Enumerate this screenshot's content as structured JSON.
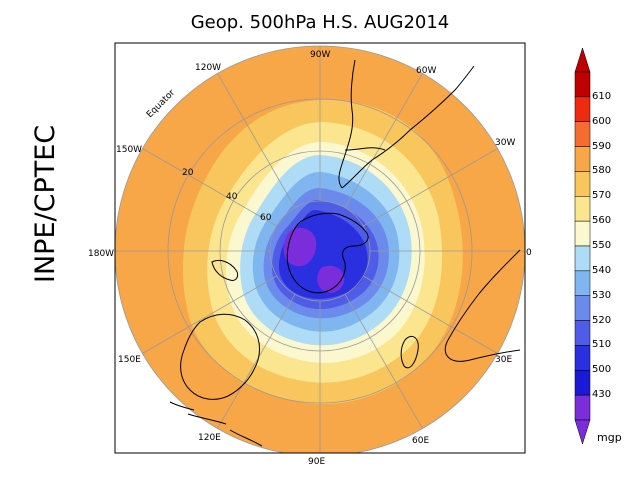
{
  "title": "Geop. 500hPa H.S. AUG2014",
  "side_label": "INPE/CPTEC",
  "unit": "mgp",
  "map": {
    "projection": "south-polar-stereographic",
    "longitude_labels": [
      "90W",
      "60W",
      "30W",
      "0",
      "30E",
      "60E",
      "90E",
      "120E",
      "150E",
      "180W",
      "150W",
      "120W"
    ],
    "latitude_labels": [
      "Equator",
      "20",
      "40",
      "60"
    ]
  },
  "colorbar": {
    "levels": [
      "610",
      "600",
      "590",
      "580",
      "570",
      "560",
      "550",
      "540",
      "530",
      "520",
      "510",
      "500",
      "430"
    ],
    "colors": [
      "#c00000",
      "#ee2a10",
      "#f56b30",
      "#f7a648",
      "#f8c65c",
      "#fbe68f",
      "#fbf7cf",
      "#aedcf6",
      "#7fb6ef",
      "#6b8aec",
      "#4f5ce7",
      "#2a2fe0",
      "#1a1ad6",
      "#7b2cdb"
    ]
  },
  "colors": {
    "land_outline": "#000000",
    "grid": "#9a9a9a"
  }
}
